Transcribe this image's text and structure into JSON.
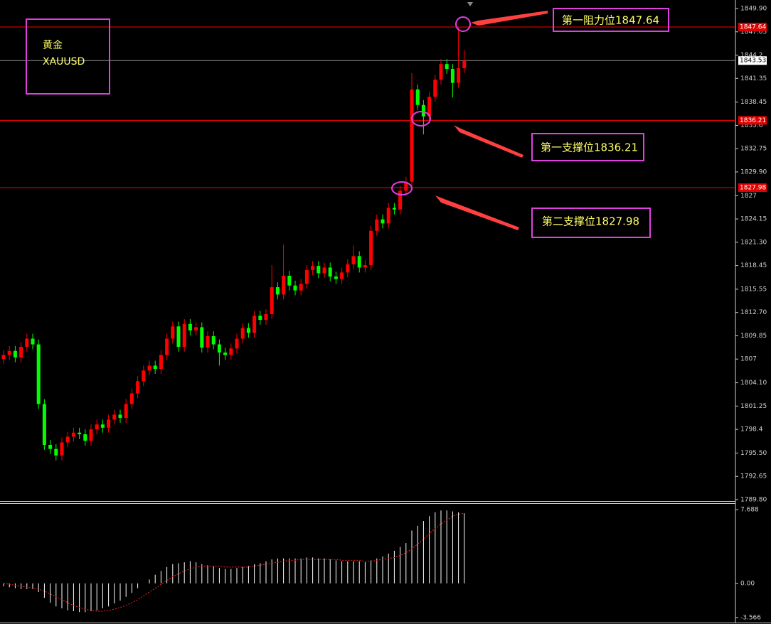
{
  "chart_data": [
    {
      "type": "candlestick",
      "title": "黄金",
      "subtitle": "XAUUSD",
      "open": [
        1807.0,
        1807.5,
        1808.0,
        1807.2,
        1808.5,
        1809.5,
        1808.8,
        1801.5,
        1796.5,
        1796.0,
        1795.2,
        1796.8,
        1797.5,
        1798.0,
        1797.8,
        1797.0,
        1798.4,
        1799.0,
        1798.6,
        1799.6,
        1800.2,
        1799.8,
        1801.5,
        1802.8,
        1804.3,
        1805.6,
        1806.2,
        1805.8,
        1807.5,
        1809.5,
        1811.0,
        1808.5,
        1811.3,
        1810.5,
        1810.9,
        1808.4,
        1809.8,
        1808.8,
        1807.8,
        1807.5,
        1808.3,
        1809.5,
        1810.8,
        1810.2,
        1812.3,
        1811.8,
        1812.5,
        1815.8,
        1814.9,
        1817.2,
        1816.0,
        1815.4,
        1816.2,
        1817.9,
        1818.4,
        1817.5,
        1818.2,
        1817.1,
        1816.8,
        1817.6,
        1818.6,
        1819.6,
        1818.2,
        1818.5,
        1822.7,
        1824.1,
        1823.6,
        1825.5,
        1825.3,
        1827.6,
        1828.7,
        1840.0,
        1838.1,
        1836.7,
        1839.1,
        1841.2,
        1843.1,
        1842.5,
        1840.8,
        1842.6
      ],
      "high": [
        1808.1,
        1808.6,
        1808.6,
        1809.1,
        1810.1,
        1810.1,
        1809.4,
        1802.1,
        1797.1,
        1796.6,
        1797.4,
        1798.1,
        1798.6,
        1798.6,
        1798.4,
        1799.0,
        1799.6,
        1799.6,
        1800.2,
        1800.8,
        1800.8,
        1802.1,
        1803.4,
        1804.9,
        1806.2,
        1806.8,
        1806.8,
        1808.1,
        1810.1,
        1811.6,
        1811.6,
        1811.9,
        1811.9,
        1811.5,
        1811.5,
        1810.4,
        1810.4,
        1809.4,
        1808.4,
        1808.9,
        1810.1,
        1811.4,
        1811.4,
        1812.9,
        1812.9,
        1813.1,
        1818.5,
        1816.4,
        1821.0,
        1817.8,
        1816.6,
        1816.8,
        1818.5,
        1819.0,
        1819.0,
        1818.8,
        1818.8,
        1817.7,
        1818.2,
        1819.2,
        1820.9,
        1820.2,
        1819.1,
        1823.3,
        1824.7,
        1824.7,
        1826.1,
        1826.1,
        1828.2,
        1829.3,
        1842.0,
        1840.6,
        1838.7,
        1839.7,
        1841.8,
        1843.7,
        1843.7,
        1843.1,
        1847.64,
        1844.8
      ],
      "low": [
        1806.4,
        1806.9,
        1806.6,
        1806.6,
        1807.9,
        1808.2,
        1800.9,
        1795.9,
        1795.4,
        1794.6,
        1794.6,
        1796.2,
        1796.9,
        1797.2,
        1796.4,
        1796.4,
        1797.8,
        1798.0,
        1798.0,
        1799.0,
        1799.2,
        1799.2,
        1800.9,
        1802.2,
        1803.7,
        1805.0,
        1805.2,
        1805.2,
        1806.9,
        1808.9,
        1807.9,
        1807.9,
        1809.9,
        1809.9,
        1807.8,
        1807.8,
        1808.2,
        1806.2,
        1806.9,
        1806.9,
        1807.7,
        1808.9,
        1809.6,
        1809.6,
        1811.2,
        1811.2,
        1811.9,
        1814.3,
        1814.3,
        1815.4,
        1814.8,
        1814.8,
        1815.6,
        1817.3,
        1816.9,
        1816.9,
        1816.5,
        1816.2,
        1816.2,
        1817.0,
        1818.0,
        1817.6,
        1817.6,
        1817.9,
        1822.1,
        1823.0,
        1823.0,
        1824.7,
        1824.7,
        1827.0,
        1827.8,
        1837.5,
        1834.5,
        1836.1,
        1838.5,
        1840.6,
        1841.9,
        1839.0,
        1840.2,
        1842.0
      ],
      "close": [
        1807.5,
        1808.0,
        1807.2,
        1808.5,
        1809.5,
        1808.8,
        1801.5,
        1796.5,
        1796.0,
        1795.2,
        1796.8,
        1797.5,
        1798.0,
        1797.8,
        1797.0,
        1798.4,
        1799.0,
        1798.6,
        1799.6,
        1800.2,
        1799.8,
        1801.5,
        1802.8,
        1804.3,
        1805.6,
        1806.2,
        1805.8,
        1807.5,
        1809.5,
        1811.0,
        1808.5,
        1811.3,
        1810.5,
        1810.9,
        1808.4,
        1809.8,
        1808.8,
        1807.8,
        1807.5,
        1808.3,
        1809.5,
        1810.8,
        1810.2,
        1812.3,
        1811.8,
        1812.5,
        1815.8,
        1814.9,
        1817.2,
        1816.0,
        1815.4,
        1816.2,
        1817.9,
        1818.4,
        1817.5,
        1818.2,
        1817.1,
        1816.8,
        1817.6,
        1818.6,
        1819.6,
        1818.2,
        1818.5,
        1822.7,
        1824.1,
        1823.6,
        1825.5,
        1825.3,
        1827.6,
        1828.7,
        1840.0,
        1838.1,
        1836.7,
        1839.1,
        1841.2,
        1843.1,
        1842.5,
        1840.8,
        1842.6,
        1843.5
      ],
      "up_color": "#ff0000",
      "down_color": "#00ff00",
      "ylim": [
        1789.8,
        1849.9
      ],
      "yticks": [
        {
          "value": 1849.9,
          "label": "1849.90"
        },
        1847.05,
        1844.2,
        1841.35,
        1838.45,
        1835.6,
        1832.75,
        {
          "value": 1829.9,
          "label": "1829.90"
        },
        1827,
        1824.15,
        {
          "value": 1821.3,
          "label": "1821.30"
        },
        1818.45,
        1815.55,
        {
          "value": 1812.7,
          "label": "1812.70"
        },
        1809.85,
        1807,
        {
          "value": 1804.1,
          "label": "1804.10"
        },
        1801.25,
        1798.4,
        {
          "value": 1795.5,
          "label": "1795.50"
        },
        1792.65,
        {
          "value": 1789.8,
          "label": "1789.80"
        }
      ],
      "levels": [
        {
          "value": 1847.64,
          "color": "#ff0000"
        },
        {
          "value": 1843.53,
          "color": "#909090"
        },
        {
          "value": 1836.21,
          "color": "#ff0000"
        },
        {
          "value": 1827.98,
          "color": "#ff0000"
        }
      ],
      "annotations": [
        "第一阻力位1847.64",
        "第一支撑位1836.21",
        "第二支撑位1827.98"
      ]
    },
    {
      "type": "macd",
      "histogram": [
        -0.3,
        -0.4,
        -0.5,
        -0.6,
        -0.6,
        -0.6,
        -0.9,
        -1.5,
        -2.0,
        -2.4,
        -2.6,
        -2.8,
        -2.9,
        -3.0,
        -3.0,
        -2.9,
        -2.8,
        -2.6,
        -2.4,
        -2.1,
        -1.8,
        -1.4,
        -1.0,
        -0.5,
        0.0,
        0.4,
        0.9,
        1.3,
        1.7,
        2.0,
        2.1,
        2.2,
        2.3,
        2.2,
        2.0,
        1.9,
        1.8,
        1.6,
        1.5,
        1.5,
        1.6,
        1.7,
        1.8,
        2.0,
        2.1,
        2.3,
        2.5,
        2.6,
        2.6,
        2.6,
        2.6,
        2.6,
        2.7,
        2.7,
        2.6,
        2.6,
        2.5,
        2.4,
        2.3,
        2.3,
        2.3,
        2.3,
        2.2,
        2.4,
        2.6,
        2.8,
        3.1,
        3.4,
        3.8,
        4.2,
        5.5,
        6.0,
        6.5,
        7.0,
        7.4,
        7.6,
        7.6,
        7.5,
        7.4,
        7.3
      ],
      "signal": [
        0.0,
        -0.1,
        -0.2,
        -0.3,
        -0.4,
        -0.5,
        -0.6,
        -0.8,
        -1.1,
        -1.4,
        -1.7,
        -2.0,
        -2.3,
        -2.5,
        -2.7,
        -2.8,
        -2.9,
        -2.9,
        -2.8,
        -2.7,
        -2.5,
        -2.3,
        -2.0,
        -1.7,
        -1.3,
        -0.9,
        -0.5,
        -0.1,
        0.3,
        0.7,
        1.0,
        1.3,
        1.5,
        1.7,
        1.8,
        1.8,
        1.8,
        1.8,
        1.7,
        1.7,
        1.7,
        1.7,
        1.7,
        1.8,
        1.9,
        2.0,
        2.1,
        2.2,
        2.3,
        2.4,
        2.4,
        2.5,
        2.5,
        2.5,
        2.5,
        2.5,
        2.5,
        2.5,
        2.4,
        2.4,
        2.4,
        2.4,
        2.3,
        2.3,
        2.4,
        2.5,
        2.6,
        2.7,
        2.9,
        3.2,
        3.6,
        4.1,
        4.6,
        5.2,
        5.7,
        6.2,
        6.6,
        7.0,
        7.2,
        7.3
      ],
      "histogram_color": "#ffffff",
      "signal_color": "#ff2020",
      "ylim": [
        -3.566,
        7.688
      ],
      "yticks": [
        7.688,
        {
          "value": 0,
          "label": "0.00"
        },
        -3.566
      ]
    }
  ]
}
